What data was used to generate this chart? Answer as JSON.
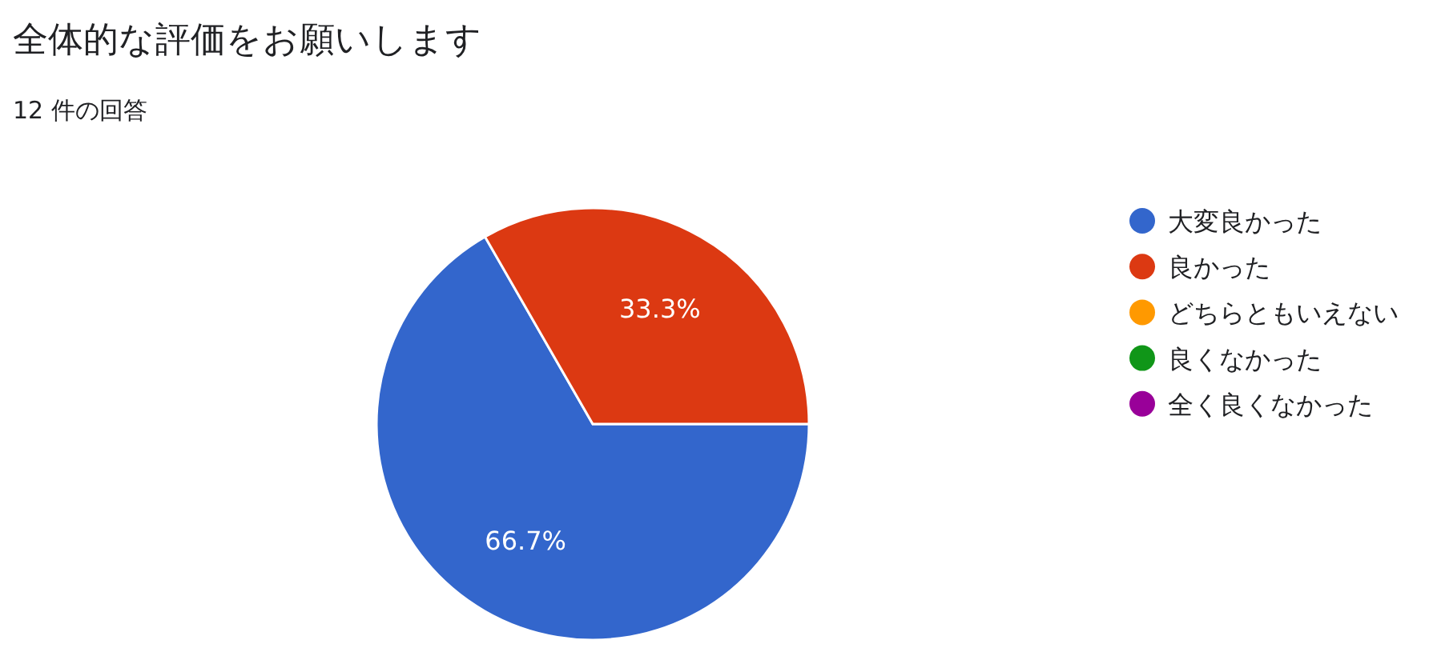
{
  "chart_data": {
    "type": "pie",
    "title": "全体的な評価をお願いします",
    "subtitle": "12 件の回答",
    "categories": [
      "大変良かった",
      "良かった",
      "どちらともいえない",
      "良くなかった",
      "全く良くなかった"
    ],
    "values": [
      66.7,
      33.3,
      0,
      0,
      0
    ],
    "colors": [
      "#3366cc",
      "#dc3912",
      "#ff9900",
      "#109618",
      "#990099"
    ],
    "value_labels": [
      "66.7%",
      "33.3%",
      null,
      null,
      null
    ],
    "legend": "right"
  }
}
